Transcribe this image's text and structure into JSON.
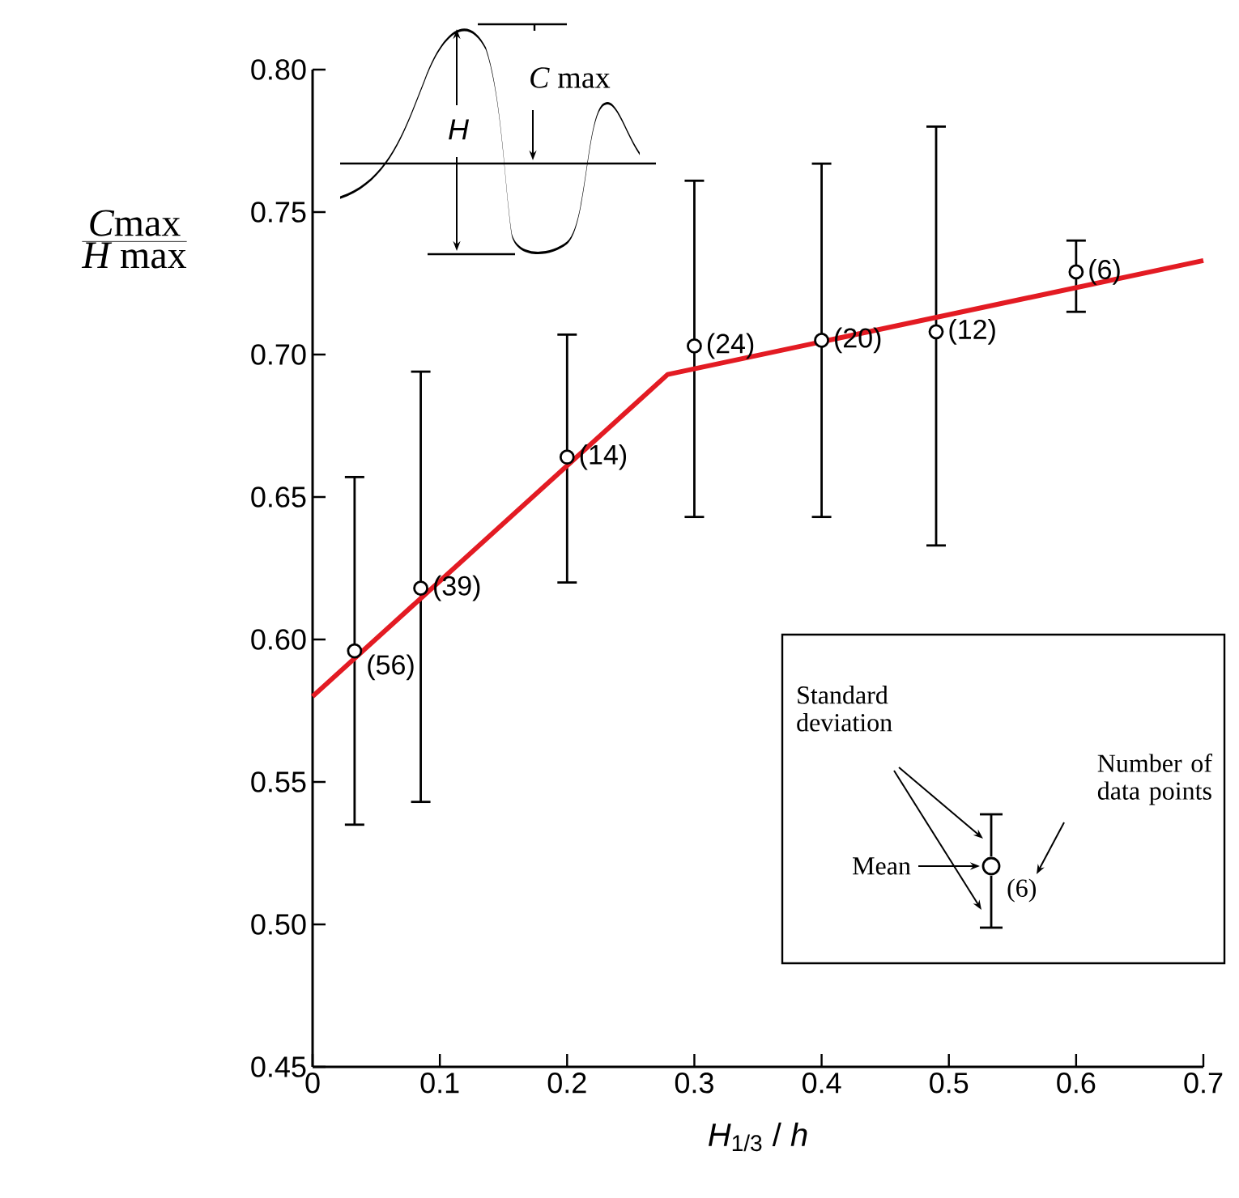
{
  "chart_data": {
    "type": "scatter",
    "xlabel": "*H*$_{1/3}$ / *h*",
    "ylabel": "\\frac{\\mbox{\\itshape C\\upshape max}}{\\mbox{\\itshape H\\upshape\\ max}}",
    "xlim": [
      0,
      0.7
    ],
    "ylim": [
      0.45,
      0.8
    ],
    "xticks": [
      0,
      0.1,
      0.2,
      0.3,
      0.4,
      0.5,
      0.6,
      0.7
    ],
    "yticks": [
      {
        "value": 0.45,
        "label": "0.45"
      },
      {
        "value": 0.5,
        "label": "0.50"
      },
      {
        "value": 0.55,
        "label": "0.55"
      },
      {
        "value": 0.6,
        "label": "0.60"
      },
      {
        "value": 0.65,
        "label": "0.65"
      },
      {
        "value": 0.7,
        "label": "0.70"
      },
      {
        "value": 0.75,
        "label": "0.75"
      },
      {
        "value": 0.8,
        "label": "0.80"
      }
    ],
    "series": [
      {
        "color": "#000000",
        "marker": "circle",
        "x": [
          0.033,
          0.085,
          0.2,
          0.3,
          0.4,
          0.49,
          0.6
        ],
        "values": [
          0.596,
          0.618,
          0.664,
          0.703,
          0.705,
          0.708,
          0.729
        ],
        "errors": [
          [
            0.535,
            0.657
          ],
          [
            0.543,
            0.694
          ],
          [
            0.62,
            0.707
          ],
          [
            0.643,
            0.761
          ],
          [
            0.643,
            0.767
          ],
          [
            0.633,
            0.78
          ],
          [
            0.715,
            0.74
          ]
        ]
      },
      {
        "type": "line",
        "color": "#e31b23",
        "x": [
          0,
          0.279,
          0.7
        ],
        "values": [
          0.58,
          0.693,
          0.733
        ]
      }
    ],
    "annotations": [
      "*H*",
      "*C* max",
      "Standard deviation",
      "Number of data points",
      "Mean",
      "(6)",
      {
        "text": "(56)",
        "x": 0.033,
        "y": 0.596
      },
      {
        "text": "(39)",
        "x": 0.085,
        "y": 0.618
      },
      {
        "text": "(14)",
        "x": 0.2,
        "y": 0.664
      },
      {
        "text": "(24)",
        "x": 0.3,
        "y": 0.703
      },
      {
        "text": "(20)",
        "x": 0.4,
        "y": 0.705
      },
      {
        "text": "(12)",
        "x": 0.49,
        "y": 0.708
      },
      {
        "text": "(6)",
        "x": 0.6,
        "y": 0.729
      }
    ]
  }
}
